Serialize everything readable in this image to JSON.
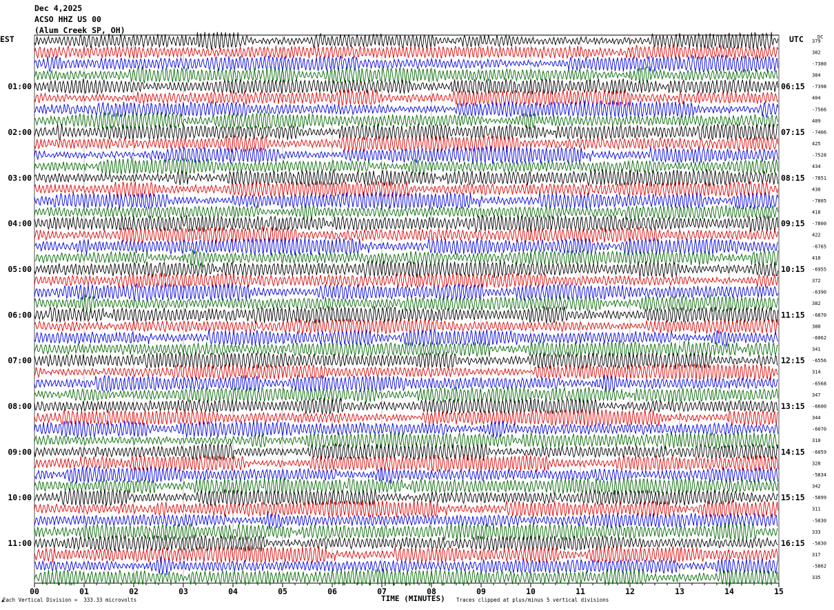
{
  "header": {
    "date": "Dec 4,2025",
    "station": "ACSO HHZ US 00",
    "location": "(Alum Creek SP, OH)"
  },
  "left_timezone": "EST",
  "right_timezone": "UTC",
  "dc_header": "DC",
  "footer": {
    "scale_note": "Each Vertical Division =  333.33 microvolts",
    "xlabel": "TIME (MINUTES)",
    "clip_note": "Traces clipped at plus/minus 5 vertical divisions"
  },
  "chart_data": {
    "type": "line",
    "title": "ACSO HHZ US 00",
    "xlabel": "TIME (MINUTES)",
    "xlim": [
      0,
      15
    ],
    "x_ticks": [
      "00",
      "01",
      "02",
      "03",
      "04",
      "05",
      "06",
      "07",
      "08",
      "09",
      "10",
      "11",
      "12",
      "13",
      "14",
      "15"
    ],
    "trace_count": 48,
    "trace_colors": [
      "#000000",
      "#dd0000",
      "#0000dd",
      "#006600"
    ],
    "left_hour_labels": [
      "01:00",
      "02:00",
      "03:00",
      "04:00",
      "05:00",
      "06:00",
      "07:00",
      "08:00",
      "09:00",
      "10:00",
      "11:00"
    ],
    "right_hour_labels": [
      "06:15",
      "07:15",
      "08:15",
      "09:15",
      "10:15",
      "11:15",
      "12:15",
      "13:15",
      "14:15",
      "15:15",
      "16:15"
    ],
    "dc_offsets": [
      "379",
      "382",
      "-7380",
      "384",
      "-7398",
      "404",
      "-7566",
      "409",
      "-7406",
      "425",
      "-7528",
      "434",
      "-7851",
      "430",
      "-7805",
      "418",
      "-7800",
      "422",
      "-6765",
      "410",
      "-6955",
      "372",
      "-6390",
      "382",
      "-6870",
      "380",
      "-6062",
      "341",
      "-6556",
      "314",
      "-6568",
      "347",
      "-6600",
      "344",
      "-6070",
      "310",
      "-6059",
      "328",
      "-5834",
      "342",
      "-5899",
      "311",
      "-5830",
      "333",
      "-5830",
      "317",
      "-5862",
      "335"
    ],
    "grid": true
  }
}
